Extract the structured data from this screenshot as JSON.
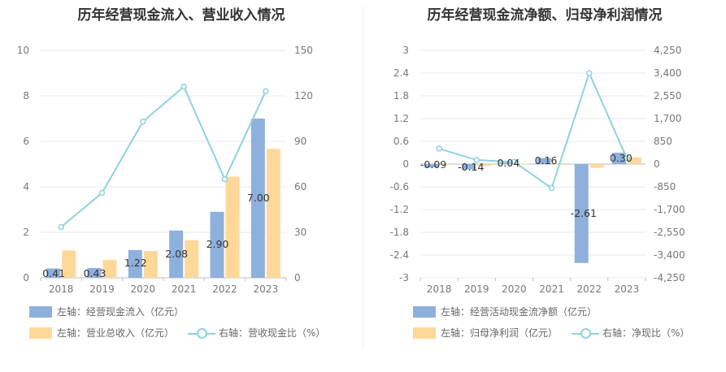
{
  "colors": {
    "blue": "#8eb0dc",
    "orange": "#ffd899",
    "line": "#8dd3dc"
  },
  "legends": {
    "left": {
      "bar1": "左轴：经营现金流入（亿元）",
      "bar2": "左轴：营业总收入（亿元）",
      "line": "右轴：营收现金比（%）"
    },
    "right": {
      "bar1": "左轴：经营活动现金流净额（亿元）",
      "bar2": "左轴：归母净利润（亿元）",
      "line": "右轴：净现比（%）"
    }
  },
  "chart_data": [
    {
      "type": "bar",
      "title": "历年经营现金流入、营业收入情况",
      "categories": [
        "2018",
        "2019",
        "2020",
        "2021",
        "2022",
        "2023"
      ],
      "ylim_left": [
        0,
        10
      ],
      "ylim_right": [
        0,
        150
      ],
      "yticks_left": [
        "0",
        "2",
        "4",
        "6",
        "8",
        "10"
      ],
      "yticks_right": [
        "0",
        "30",
        "60",
        "90",
        "120",
        "150"
      ],
      "series": [
        {
          "name": "左轴：经营现金流入（亿元）",
          "axis": "left",
          "kind": "bar",
          "values": [
            0.41,
            0.43,
            1.22,
            2.08,
            2.9,
            7.0
          ],
          "labels": [
            "0.41",
            "0.43",
            "1.22",
            "2.08",
            "2.90",
            "7.00"
          ]
        },
        {
          "name": "左轴：营业总收入（亿元）",
          "axis": "left",
          "kind": "bar",
          "values": [
            1.2,
            0.78,
            1.18,
            1.65,
            4.45,
            5.67
          ]
        },
        {
          "name": "右轴：营收现金比（%）",
          "axis": "right",
          "kind": "line",
          "values": [
            33.5,
            56,
            103,
            126,
            65,
            123
          ]
        }
      ],
      "grid": true
    },
    {
      "type": "bar",
      "title": "历年经营现金流净额、归母净利润情况",
      "categories": [
        "2018",
        "2019",
        "2020",
        "2021",
        "2022",
        "2023"
      ],
      "ylim_left": [
        -3,
        3
      ],
      "ylim_right": [
        -4250,
        4250
      ],
      "yticks_left": [
        "3",
        "2.4",
        "1.8",
        "1.2",
        "0.6",
        "0",
        "-0.6",
        "-1.2",
        "-1.8",
        "-2.4",
        "-3"
      ],
      "yticks_right": [
        "4,250",
        "3,400",
        "2,550",
        "1,700",
        "850",
        "0",
        "-850",
        "-1,700",
        "-2,550",
        "-3,400",
        "-4,250"
      ],
      "series": [
        {
          "name": "左轴：经营活动现金流净额（亿元）",
          "axis": "left",
          "kind": "bar",
          "values": [
            -0.09,
            -0.14,
            0.04,
            0.16,
            -2.61,
            0.3
          ],
          "labels": [
            "-0.09",
            "-0.14",
            "0.04",
            "0.16",
            "-2.61",
            "0.30"
          ]
        },
        {
          "name": "左轴：归母净利润（亿元）",
          "axis": "left",
          "kind": "bar",
          "values": [
            -0.02,
            -0.05,
            0.01,
            -0.01,
            -0.1,
            0.18
          ]
        },
        {
          "name": "右轴：净现比（%）",
          "axis": "right",
          "kind": "line",
          "values": [
            580,
            150,
            80,
            -900,
            3400,
            220
          ]
        }
      ],
      "grid": true
    }
  ]
}
